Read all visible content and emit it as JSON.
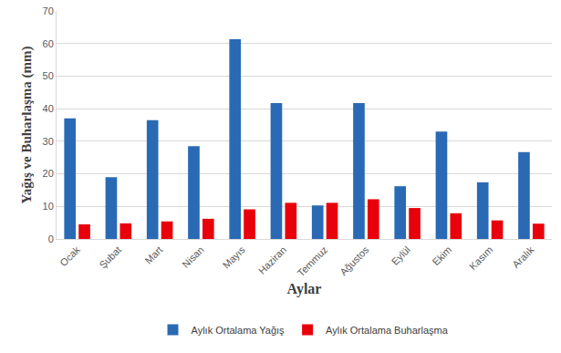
{
  "chart_data": {
    "type": "bar",
    "x_label": "Aylar",
    "y_label": "Yağış ve Buharlaşma (mm)",
    "categories": [
      "Ocak",
      "Şubat",
      "Mart",
      "Nisan",
      "Mayıs",
      "Haziran",
      "Temmuz",
      "Ağustos",
      "Eylül",
      "Ekim",
      "Kasım",
      "Aralık"
    ],
    "series": [
      {
        "name": "Aylık Ortalama Yağış",
        "color": "#2a6ab4",
        "values": [
          37,
          19,
          36.5,
          28.5,
          61.3,
          41.7,
          10.3,
          41.7,
          16.2,
          33,
          17.4,
          26.7
        ]
      },
      {
        "name": "Aylık Ortalama Buharlaşma",
        "color": "#e8000b",
        "values": [
          4.5,
          4.8,
          5.4,
          6.2,
          9.1,
          11.1,
          11.1,
          12.2,
          9.5,
          7.9,
          5.7,
          4.7
        ]
      }
    ],
    "ylim": [
      0,
      70
    ],
    "yticks": [
      0,
      10,
      20,
      30,
      40,
      50,
      60,
      70
    ],
    "grid": true,
    "legend": "bottom"
  }
}
